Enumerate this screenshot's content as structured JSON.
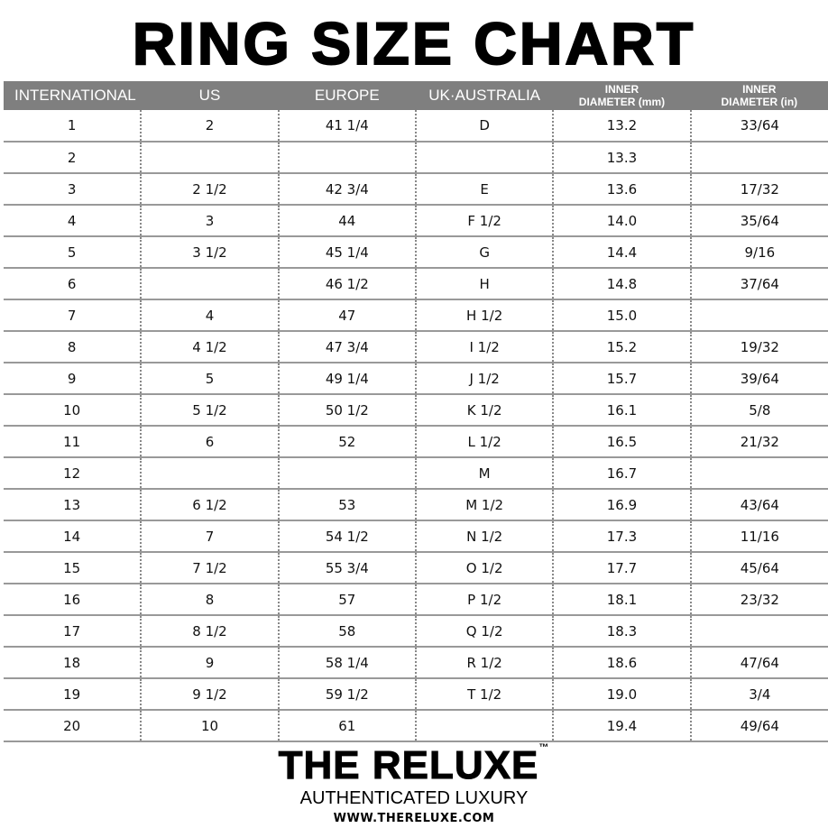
{
  "title": "RING SIZE CHART",
  "columns": [
    "INTERNATIONAL",
    "US",
    "EUROPE",
    "UK·AUSTRALIA",
    [
      "INNER",
      "DIAMETER (mm)"
    ],
    [
      "INNER",
      "DIAMETER (in)"
    ]
  ],
  "rows": [
    [
      "1",
      "2",
      "41 1/4",
      "D",
      "13.2",
      "33/64"
    ],
    [
      "2",
      "",
      "",
      "",
      "13.3",
      ""
    ],
    [
      "3",
      "2 1/2",
      "42 3/4",
      "E",
      "13.6",
      "17/32"
    ],
    [
      "4",
      "3",
      "44",
      "F 1/2",
      "14.0",
      "35/64"
    ],
    [
      "5",
      "3 1/2",
      "45 1/4",
      "G",
      "14.4",
      "9/16"
    ],
    [
      "6",
      "",
      "46 1/2",
      "H",
      "14.8",
      "37/64"
    ],
    [
      "7",
      "4",
      "47",
      "H 1/2",
      "15.0",
      ""
    ],
    [
      "8",
      "4 1/2",
      "47 3/4",
      "I 1/2",
      "15.2",
      "19/32"
    ],
    [
      "9",
      "5",
      "49 1/4",
      "J 1/2",
      "15.7",
      "39/64"
    ],
    [
      "10",
      "5 1/2",
      "50 1/2",
      "K 1/2",
      "16.1",
      "5/8"
    ],
    [
      "11",
      "6",
      "52",
      "L 1/2",
      "16.5",
      "21/32"
    ],
    [
      "12",
      "",
      "",
      "M",
      "16.7",
      ""
    ],
    [
      "13",
      "6 1/2",
      "53",
      "M 1/2",
      "16.9",
      "43/64"
    ],
    [
      "14",
      "7",
      "54 1/2",
      "N 1/2",
      "17.3",
      "11/16"
    ],
    [
      "15",
      "7 1/2",
      "55 3/4",
      "O 1/2",
      "17.7",
      "45/64"
    ],
    [
      "16",
      "8",
      "57",
      "P 1/2",
      "18.1",
      "23/32"
    ],
    [
      "17",
      "8 1/2",
      "58",
      "Q 1/2",
      "18.3",
      ""
    ],
    [
      "18",
      "9",
      "58 1/4",
      "R 1/2",
      "18.6",
      "47/64"
    ],
    [
      "19",
      "9 1/2",
      "59 1/2",
      "T 1/2",
      "19.0",
      "3/4"
    ],
    [
      "20",
      "10",
      "61",
      "",
      "19.4",
      "49/64"
    ]
  ],
  "footer": {
    "brand": "THE RELUXE",
    "trademark": "™",
    "tagline": "AUTHENTICATED LUXURY",
    "url": "WWW.THERELUXE.COM"
  },
  "colors": {
    "header_bg": "#7f7f7f",
    "row_line": "#999999"
  }
}
